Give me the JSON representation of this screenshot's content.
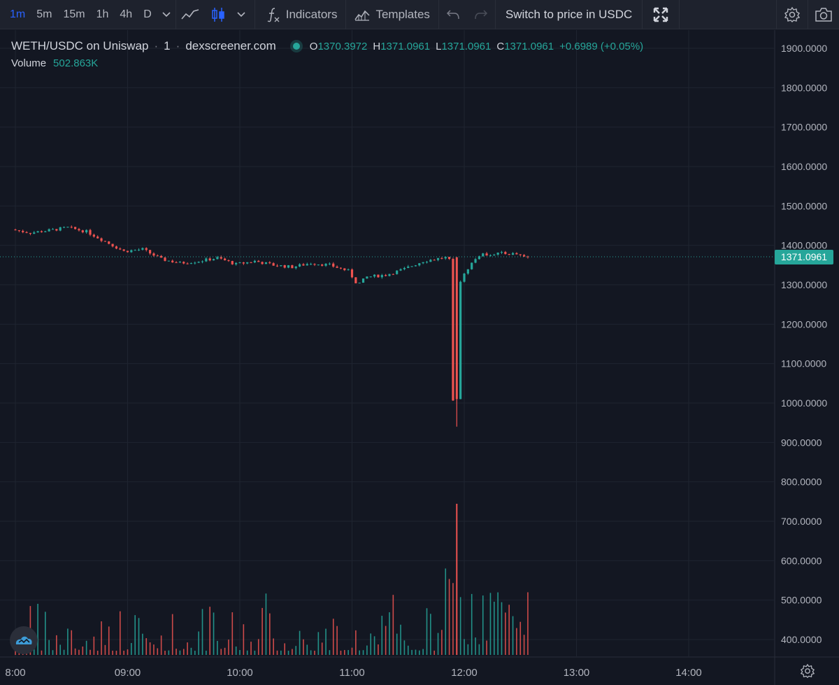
{
  "toolbar": {
    "timeframes": [
      "1m",
      "5m",
      "15m",
      "1h",
      "4h",
      "D"
    ],
    "active_timeframe": "1m",
    "indicators_label": "Indicators",
    "templates_label": "Templates",
    "switch_label": "Switch to price in USDC"
  },
  "legend": {
    "symbol": "WETH/USDC on Uniswap",
    "interval": "1",
    "source": "dexscreener.com",
    "o_key": "O",
    "o_val": "1370.3972",
    "h_key": "H",
    "h_val": "1371.0961",
    "l_key": "L",
    "l_val": "1371.0961",
    "c_key": "C",
    "c_val": "1371.0961",
    "change": "+0.6989 (+0.05%)",
    "volume_label": "Volume",
    "volume_value": "502.863K"
  },
  "price_tag": "1371.0961",
  "colors": {
    "up": "#26a69a",
    "down": "#ef5350",
    "grid": "#1f2430",
    "text": "#b2b5be",
    "bg": "#131722"
  },
  "chart_data": {
    "type": "candlestick",
    "y_ticks": [
      "1900.0000",
      "1800.0000",
      "1700.0000",
      "1600.0000",
      "1500.0000",
      "1400.0000",
      "1300.0000",
      "1200.0000",
      "1100.0000",
      "1000.0000",
      "900.0000",
      "800.0000",
      "700.0000",
      "600.0000",
      "500.0000",
      "400.0000"
    ],
    "ylim": [
      357,
      1935
    ],
    "x_ticks": [
      "8:00",
      "09:00",
      "10:00",
      "11:00",
      "12:00",
      "13:00",
      "14:00"
    ],
    "last_price": 1371.0961,
    "price_path": [
      [
        "8:00",
        1440
      ],
      [
        "8:10",
        1432
      ],
      [
        "8:20",
        1438
      ],
      [
        "8:30",
        1445
      ],
      [
        "8:40",
        1435
      ],
      [
        "8:50",
        1410
      ],
      [
        "9:00",
        1385
      ],
      [
        "9:10",
        1390
      ],
      [
        "9:20",
        1365
      ],
      [
        "9:30",
        1355
      ],
      [
        "9:40",
        1360
      ],
      [
        "9:50",
        1368
      ],
      [
        "10:00",
        1352
      ],
      [
        "10:10",
        1360
      ],
      [
        "10:20",
        1350
      ],
      [
        "10:30",
        1345
      ],
      [
        "10:40",
        1355
      ],
      [
        "10:50",
        1350
      ],
      [
        "11:00",
        1335
      ],
      [
        "11:05",
        1300
      ],
      [
        "11:10",
        1320
      ],
      [
        "11:20",
        1325
      ],
      [
        "11:30",
        1340
      ],
      [
        "11:40",
        1360
      ],
      [
        "11:50",
        1368
      ],
      [
        "11:55",
        1370
      ],
      [
        "11:56",
        1010
      ],
      [
        "11:57",
        1250
      ],
      [
        "12:00",
        1310
      ],
      [
        "12:05",
        1350
      ],
      [
        "12:10",
        1375
      ],
      [
        "12:20",
        1380
      ],
      [
        "12:30",
        1378
      ],
      [
        "12:35",
        1371
      ]
    ],
    "spike": {
      "time": "11:56",
      "open": 1370,
      "close": 1010,
      "low": 940
    }
  }
}
